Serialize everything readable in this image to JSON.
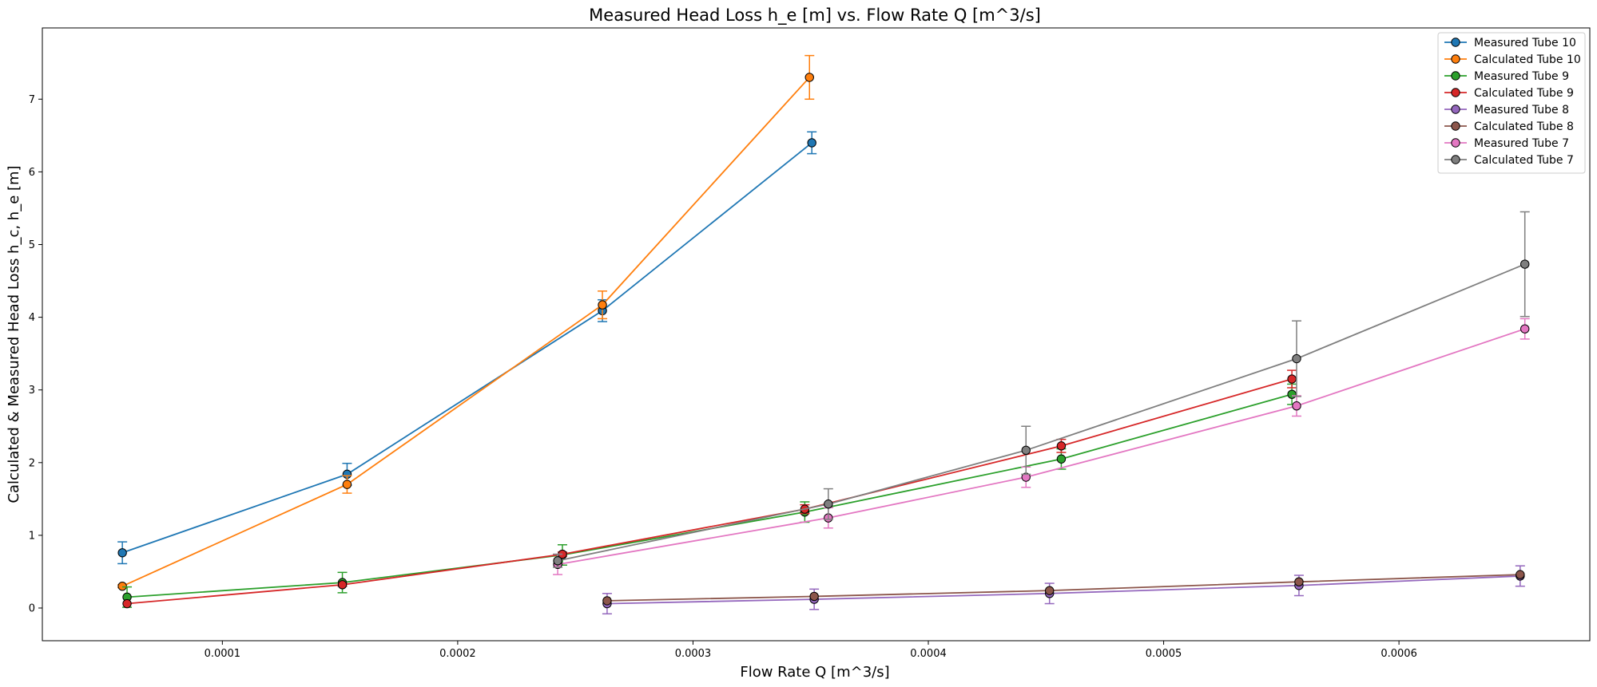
{
  "chart_data": {
    "type": "line",
    "title": "Measured Head Loss h_e [m] vs. Flow Rate Q [m^3/s]",
    "xlabel": "Flow Rate Q [m^3/s]",
    "ylabel": "Calculated & Measured Head Loss h_c, h_e [m]",
    "xlim": [
      2.35e-05,
      0.0006811
    ],
    "ylim": [
      -0.45,
      7.98
    ],
    "xticks": [
      0.0001,
      0.0002,
      0.0003,
      0.0004,
      0.0005,
      0.0006
    ],
    "xtick_labels": [
      "0.0001",
      "0.0002",
      "0.0003",
      "0.0004",
      "0.0005",
      "0.0006"
    ],
    "yticks": [
      0,
      1,
      2,
      3,
      4,
      5,
      6,
      7
    ],
    "ytick_labels": [
      "0",
      "1",
      "2",
      "3",
      "4",
      "5",
      "6",
      "7"
    ],
    "grid": false,
    "legend_position": "top-right",
    "series": [
      {
        "name": "Measured Tube 10",
        "color": "#1f77b4",
        "x": [
          5.75e-05,
          0.000153,
          0.0002615,
          0.0003505
        ],
        "y": [
          0.76,
          1.84,
          4.09,
          6.4
        ],
        "err": [
          0.15,
          0.15,
          0.15,
          0.15
        ]
      },
      {
        "name": "Calculated Tube 10",
        "color": "#ff7f0e",
        "x": [
          5.75e-05,
          0.000153,
          0.0002615,
          0.0003495
        ],
        "y": [
          0.3,
          1.7,
          4.17,
          7.3
        ],
        "err": [
          0.02,
          0.12,
          0.19,
          0.3
        ]
      },
      {
        "name": "Measured Tube 9",
        "color": "#2ca02c",
        "x": [
          5.95e-05,
          0.000151,
          0.0002445,
          0.0003475,
          0.0004565,
          0.0005545
        ],
        "y": [
          0.15,
          0.35,
          0.73,
          1.32,
          2.05,
          2.94
        ],
        "err": [
          0.14,
          0.14,
          0.14,
          0.14,
          0.14,
          0.14
        ]
      },
      {
        "name": "Calculated Tube 9",
        "color": "#d62728",
        "x": [
          5.95e-05,
          0.000151,
          0.0002445,
          0.0003475,
          0.0004565,
          0.0005545
        ],
        "y": [
          0.06,
          0.32,
          0.74,
          1.36,
          2.23,
          3.15
        ],
        "err": [
          0.0,
          0.02,
          0.03,
          0.06,
          0.09,
          0.12
        ]
      },
      {
        "name": "Measured Tube 8",
        "color": "#9467bd",
        "x": [
          0.0002635,
          0.0003515,
          0.0004515,
          0.0005575,
          0.0006515
        ],
        "y": [
          0.06,
          0.12,
          0.2,
          0.31,
          0.44
        ],
        "err": [
          0.14,
          0.14,
          0.14,
          0.14,
          0.14
        ]
      },
      {
        "name": "Calculated Tube 8",
        "color": "#8c564b",
        "x": [
          0.0002635,
          0.0003515,
          0.0004515,
          0.0005575,
          0.0006515
        ],
        "y": [
          0.1,
          0.16,
          0.24,
          0.36,
          0.46
        ],
        "err": [
          0.0,
          0.0,
          0.0,
          0.0,
          0.0
        ]
      },
      {
        "name": "Measured Tube 7",
        "color": "#e377c2",
        "x": [
          0.0002425,
          0.0003575,
          0.0004415,
          0.0005565,
          0.0006535
        ],
        "y": [
          0.6,
          1.24,
          1.8,
          2.78,
          3.84
        ],
        "err": [
          0.14,
          0.14,
          0.14,
          0.14,
          0.14
        ]
      },
      {
        "name": "Calculated Tube 7",
        "color": "#7f7f7f",
        "x": [
          0.0002425,
          0.0003575,
          0.0004415,
          0.0005565,
          0.0006535
        ],
        "y": [
          0.65,
          1.43,
          2.17,
          3.43,
          4.73
        ],
        "err": [
          0.09,
          0.21,
          0.33,
          0.52,
          0.72
        ]
      }
    ]
  }
}
